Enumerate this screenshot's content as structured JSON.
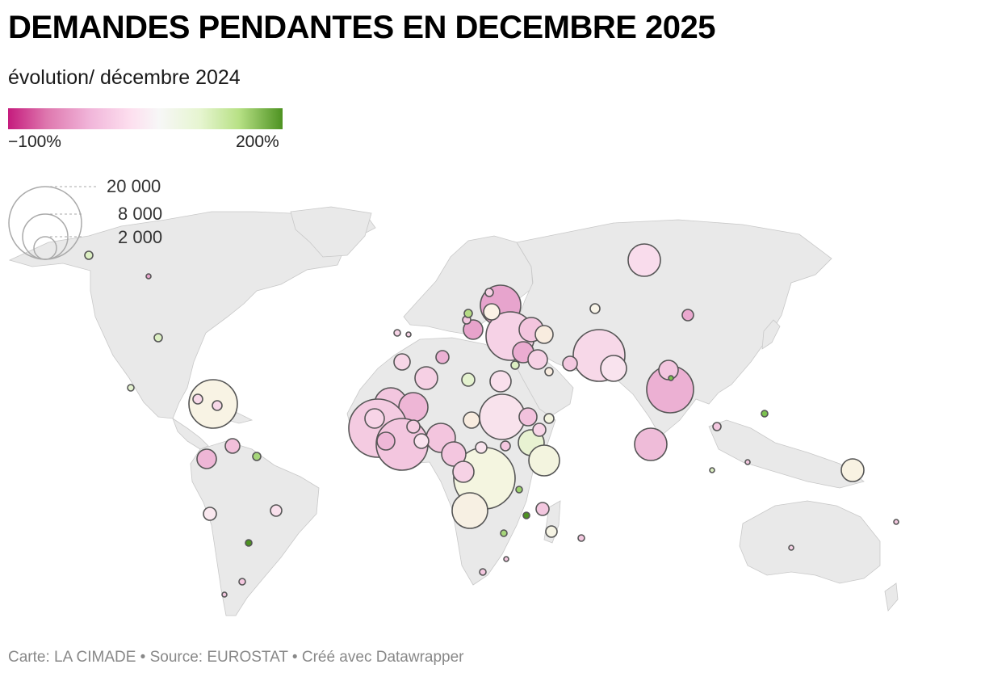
{
  "title": "DEMANDES PENDANTES EN DECEMBRE 2025",
  "subtitle": "évolution/ décembre 2024",
  "color_legend": {
    "min_label": "−100%",
    "max_label": "200%",
    "colors": [
      "#c51b7d",
      "#de77ae",
      "#f1b6da",
      "#fde0ef",
      "#f7f7f7",
      "#e6f5d0",
      "#b8e186",
      "#4d9221"
    ]
  },
  "size_legend": {
    "large": "20 000",
    "medium": "8 000",
    "small": "2 000"
  },
  "footer": "Carte: LA CIMADE  • Source: EUROSTAT • Créé avec Datawrapper",
  "map_style": {
    "land_color": "#e9e9e9",
    "bubble_stroke": "#555555"
  }
}
